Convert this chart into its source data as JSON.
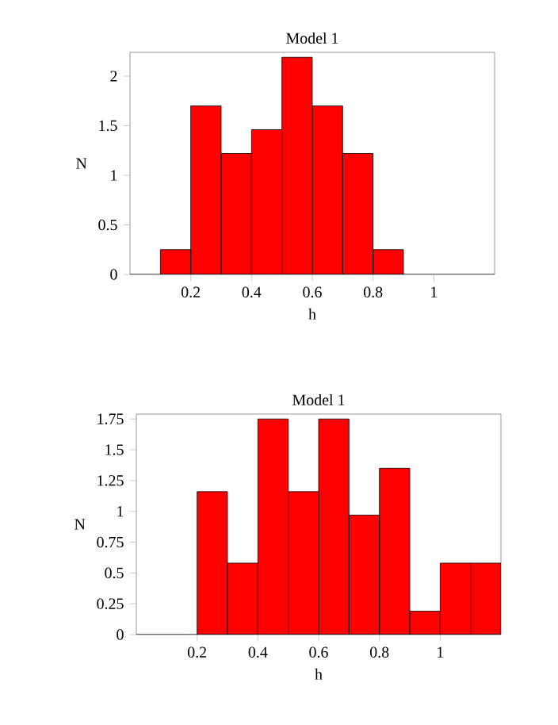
{
  "chart_data": [
    {
      "type": "histogram",
      "title": "Model 1",
      "xlabel": "h",
      "ylabel": "N",
      "color": "#ff0000",
      "bins": [
        0.1,
        0.2,
        0.3,
        0.4,
        0.5,
        0.6,
        0.7,
        0.8,
        0.9
      ],
      "values": [
        0.25,
        1.7,
        1.22,
        1.46,
        2.19,
        1.7,
        1.22,
        0.25
      ],
      "xlim": [
        0,
        1.2
      ],
      "ylim": [
        0,
        2.24
      ],
      "xticks": [
        0.2,
        0.4,
        0.6,
        0.8,
        1
      ],
      "yticks": [
        0,
        0.5,
        1,
        1.5,
        2
      ]
    },
    {
      "type": "histogram",
      "title": "Model 1",
      "xlabel": "h",
      "ylabel": "N",
      "color": "#ff0000",
      "bins": [
        0.2,
        0.3,
        0.4,
        0.5,
        0.6,
        0.7,
        0.8,
        0.9,
        1.0,
        1.1,
        1.2
      ],
      "values": [
        1.16,
        0.58,
        1.75,
        1.16,
        1.75,
        0.97,
        1.35,
        0.19,
        0.58,
        0.58
      ],
      "xlim": [
        0,
        1.2
      ],
      "ylim": [
        0,
        1.79
      ],
      "xticks": [
        0.2,
        0.4,
        0.6,
        0.8,
        1
      ],
      "yticks": [
        0,
        0.25,
        0.5,
        0.75,
        1,
        1.25,
        1.5,
        1.75
      ]
    }
  ]
}
